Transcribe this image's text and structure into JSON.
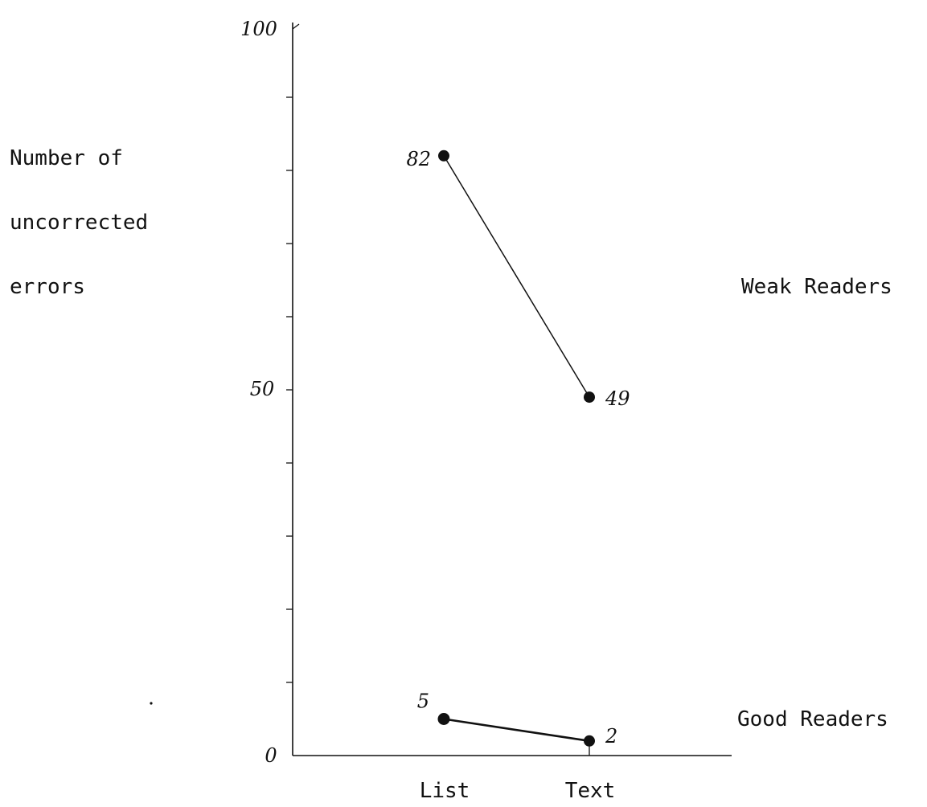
{
  "chart_data": {
    "type": "line",
    "ylabel": [
      "Number of",
      "uncorrected",
      "errors"
    ],
    "xlabel": "",
    "categories": [
      "List",
      "Text"
    ],
    "ylim": [
      0,
      100
    ],
    "y_tick_labels": [
      "0",
      "50",
      "100"
    ],
    "minor_tick_step": 10,
    "grid": false,
    "legend": "none; series labelled at right",
    "series": [
      {
        "name": "Weak Readers",
        "values": [
          82,
          49
        ],
        "point_labels": [
          "82",
          "49"
        ]
      },
      {
        "name": "Good Readers",
        "values": [
          5,
          2
        ],
        "point_labels": [
          "5",
          "2"
        ]
      }
    ]
  }
}
